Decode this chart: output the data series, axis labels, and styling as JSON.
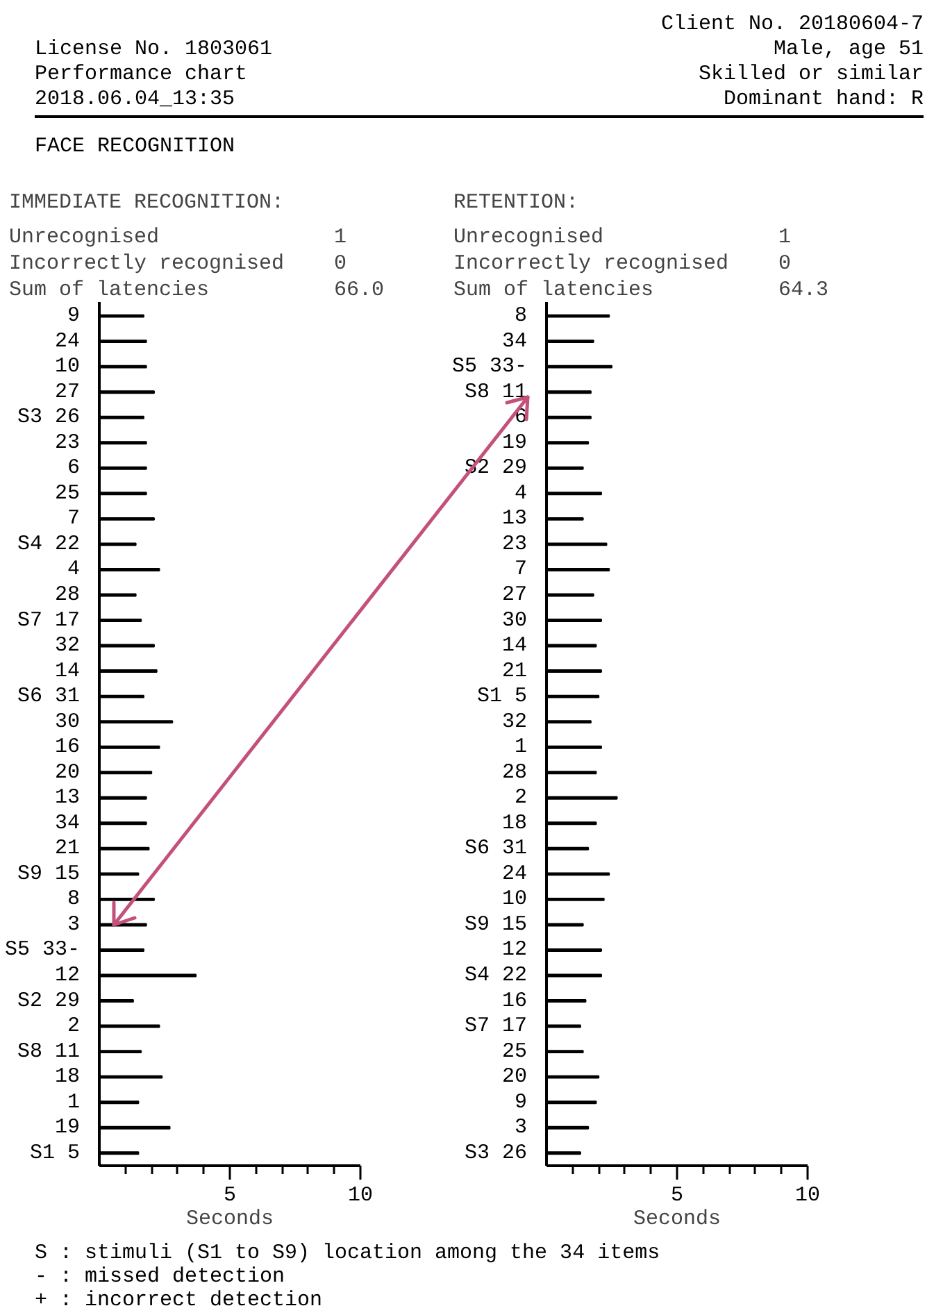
{
  "chart_data": [
    {
      "type": "other",
      "title": "FACE RECOGNITION",
      "annotations": [
        "License No. 1803061",
        "Performance chart",
        "2018.06.04_13:35",
        "Client No. 20180604-7",
        "Male, age 51",
        "Skilled or similar",
        "Dominant hand: R"
      ]
    },
    {
      "type": "bar",
      "orientation": "horizontal",
      "title": "IMMEDIATE RECOGNITION:",
      "annotations": [
        "Unrecognised",
        "1",
        "Incorrectly recognised",
        "0",
        "Sum of latencies",
        "66.0"
      ],
      "xlabel": "Seconds",
      "color": "#000000",
      "grid": false,
      "categories": [
        "9",
        "24",
        "10",
        "27",
        "S3 26",
        "23",
        "6",
        "25",
        "7",
        "S4 22",
        "4",
        "28",
        "S7 17",
        "32",
        "14",
        "S6 31",
        "30",
        "16",
        "20",
        "13",
        "34",
        "21",
        "S9 15",
        "8",
        "3",
        "S5 33-",
        "12",
        "S2 29",
        "2",
        "S8 11",
        "18",
        "1",
        "19",
        "S1 5"
      ],
      "values": [
        1.7,
        1.8,
        1.8,
        2.1,
        1.7,
        1.8,
        1.8,
        1.8,
        2.1,
        1.4,
        2.3,
        1.4,
        1.6,
        2.1,
        2.2,
        1.7,
        2.8,
        2.3,
        2.0,
        1.8,
        1.8,
        1.9,
        1.5,
        2.1,
        1.8,
        1.7,
        3.7,
        1.3,
        2.3,
        1.6,
        2.4,
        1.5,
        2.7,
        1.5
      ],
      "xlim": [
        0,
        10
      ],
      "xticks": [
        {
          "value": 1,
          "label": null
        },
        {
          "value": 2,
          "label": null
        },
        {
          "value": 3,
          "label": null
        },
        {
          "value": 4,
          "label": null
        },
        5,
        {
          "value": 6,
          "label": null
        },
        {
          "value": 7,
          "label": null
        },
        {
          "value": 8,
          "label": null
        },
        {
          "value": 9,
          "label": null
        },
        10
      ]
    },
    {
      "type": "bar",
      "orientation": "horizontal",
      "title": "RETENTION:",
      "annotations": [
        "Unrecognised",
        "1",
        "Incorrectly recognised",
        "0",
        "Sum of latencies",
        "64.3"
      ],
      "xlabel": "Seconds",
      "color": "#000000",
      "grid": false,
      "categories": [
        "8",
        "34",
        "S5 33-",
        "S8 11",
        "6",
        "19",
        "S2 29",
        "4",
        "13",
        "23",
        "7",
        "27",
        "30",
        "14",
        "21",
        "S1 5",
        "32",
        "1",
        "28",
        "2",
        "18",
        "S6 31",
        "24",
        "10",
        "S9 15",
        "12",
        "S4 22",
        "16",
        "S7 17",
        "25",
        "20",
        "9",
        "3",
        "S3 26"
      ],
      "values": [
        2.4,
        1.8,
        2.5,
        1.7,
        1.7,
        1.6,
        1.4,
        2.1,
        1.4,
        2.3,
        2.4,
        1.8,
        2.1,
        1.9,
        2.1,
        2.0,
        1.7,
        2.1,
        1.9,
        2.7,
        1.9,
        1.6,
        2.4,
        2.2,
        1.4,
        2.1,
        2.1,
        1.5,
        1.3,
        1.4,
        2.0,
        1.9,
        1.6,
        1.3
      ],
      "xlim": [
        0,
        10
      ],
      "xticks": [
        {
          "value": 1,
          "label": null
        },
        {
          "value": 2,
          "label": null
        },
        {
          "value": 3,
          "label": null
        },
        {
          "value": 4,
          "label": null
        },
        5,
        {
          "value": 6,
          "label": null
        },
        {
          "value": 7,
          "label": null
        },
        {
          "value": 8,
          "label": null
        },
        {
          "value": 9,
          "label": null
        },
        10
      ]
    },
    {
      "type": "other",
      "annotations": [
        "S : stimuli (S1 to S9) location among the 34 items",
        "- : missed detection",
        "+ : incorrect detection"
      ]
    }
  ]
}
